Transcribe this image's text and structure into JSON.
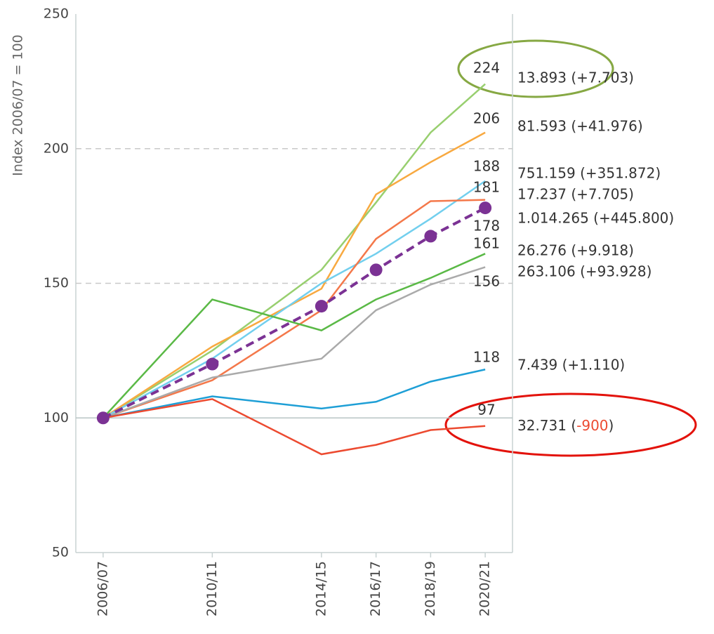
{
  "chart_data": {
    "type": "line",
    "y_label": "Index 2006/07 = 100",
    "x": [
      2006,
      2010,
      2014,
      2016,
      2018,
      2020
    ],
    "xlim": [
      2005,
      2021
    ],
    "xticks": [
      {
        "value": 2006,
        "label": "2006/07"
      },
      {
        "value": 2010,
        "label": "2010/11"
      },
      {
        "value": 2014,
        "label": "2014/15"
      },
      {
        "value": 2016,
        "label": "2016/17"
      },
      {
        "value": 2018,
        "label": "2018/19"
      },
      {
        "value": 2020,
        "label": "2020/21"
      }
    ],
    "ylim": [
      50,
      250
    ],
    "yticks": [
      50,
      100,
      150,
      200,
      250
    ],
    "grid": true,
    "baseline": 100,
    "series": [
      {
        "name": "13.893 (+7.703)",
        "color": "#98cf6f",
        "values": [
          100,
          125,
          155,
          180,
          206,
          224
        ]
      },
      {
        "name": "81.593 (+41.976)",
        "color": "#f8a940",
        "values": [
          100,
          126.5,
          148,
          183,
          195,
          206
        ]
      },
      {
        "name": "751.159 (+351.872)",
        "color": "#72cfee",
        "values": [
          100,
          122,
          150,
          161,
          174,
          188
        ]
      },
      {
        "name": "17.237 (+7.705)",
        "color": "#f4784a",
        "values": [
          100,
          114,
          140,
          166.5,
          180.5,
          181
        ]
      },
      {
        "name": "1.014.265 (+445.800)",
        "color": "#7b3294",
        "values": [
          100,
          120,
          141.5,
          155,
          167.5,
          178
        ],
        "dashed": true,
        "markers": true
      },
      {
        "name": "26.276 (+9.918)",
        "color": "#5ab946",
        "values": [
          100,
          144,
          132.5,
          144,
          152,
          161
        ]
      },
      {
        "name": "263.106 (+93.928)",
        "color": "#aaaaaa",
        "values": [
          100,
          115,
          122,
          140,
          149.5,
          156
        ]
      },
      {
        "name": "7.439 (+1.110)",
        "color": "#1e9fd6",
        "values": [
          100,
          108,
          103.5,
          106,
          113.5,
          118
        ]
      },
      {
        "name": "32.731 (-900)",
        "color": "#ec4a30",
        "values": [
          100,
          107,
          86.5,
          90,
          95.5,
          97
        ],
        "change_color": "#ec4a30"
      }
    ]
  }
}
